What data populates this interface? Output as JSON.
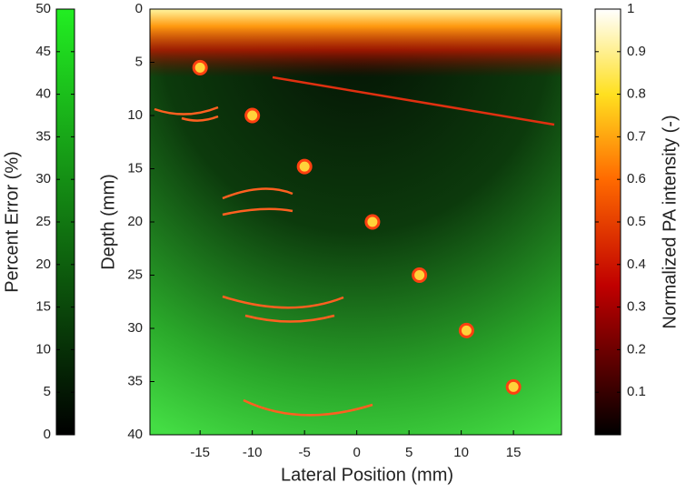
{
  "chart_data": {
    "type": "scatter",
    "x_label": "Lateral Position (mm)",
    "y_label": "Depth (mm)",
    "xlim": [
      -19.8,
      19.6
    ],
    "ylim": [
      0,
      40
    ],
    "xticks": [
      -15,
      -10,
      -5,
      0,
      5,
      10,
      15
    ],
    "yticks": [
      0,
      5,
      10,
      15,
      20,
      25,
      30,
      35,
      40
    ],
    "x": [
      -15,
      -10,
      -5,
      1.5,
      6,
      10.5,
      15
    ],
    "values": [
      5.5,
      10,
      14.8,
      20,
      25,
      30.2,
      35.5
    ],
    "color": "#ffd23a",
    "left_colorbar": {
      "label": "Percent Error (%)",
      "lim": [
        0,
        50
      ],
      "ticks": [
        0,
        5,
        10,
        15,
        20,
        25,
        30,
        35,
        40,
        45,
        50
      ]
    },
    "right_colorbar": {
      "label": "Normalized PA intensity (-)",
      "lim": [
        0,
        1
      ],
      "ticks": [
        0.1,
        0.2,
        0.3,
        0.4,
        0.5,
        0.6,
        0.7,
        0.8,
        0.9,
        1
      ]
    }
  }
}
